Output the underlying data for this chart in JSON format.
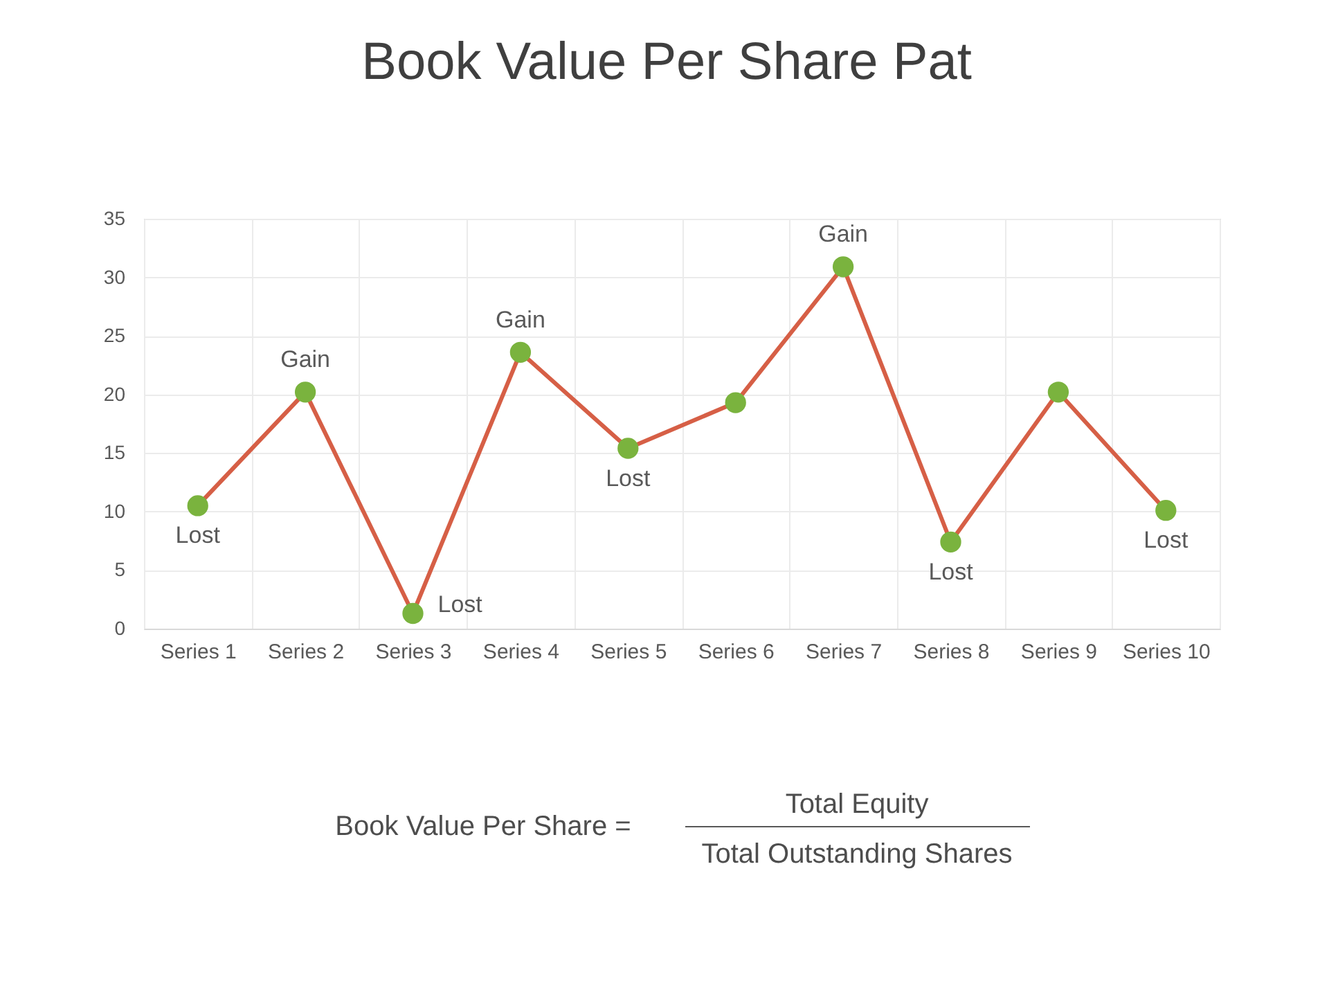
{
  "chart_data": {
    "type": "line",
    "title": "Book Value Per Share Pat",
    "categories": [
      "Series 1",
      "Series 2",
      "Series 3",
      "Series 4",
      "Series 5",
      "Series 6",
      "Series 7",
      "Series 8",
      "Series 9",
      "Series 10"
    ],
    "series": [
      {
        "color": "#d65f46",
        "colors": [
          "#7ab33e",
          "#7ab33e",
          "#7ab33e",
          "#7ab33e",
          "#7ab33e",
          "#7ab33e",
          "#7ab33e",
          "#7ab33e",
          "#7ab33e",
          "#7ab33e"
        ],
        "values": [
          10.5,
          20.2,
          1.3,
          23.6,
          15.4,
          19.3,
          30.9,
          7.4,
          20.2,
          10.1
        ]
      }
    ],
    "ylim": [
      0,
      35
    ],
    "yticks": [
      0,
      5,
      10,
      15,
      20,
      25,
      30,
      35
    ],
    "grid": true,
    "marker": "circle",
    "line_style": "solid",
    "annotations": [
      {
        "text": "Lost",
        "x": "Series 1",
        "y": 10.5
      },
      {
        "text": "Gain",
        "x": "Series 2",
        "y": 20.2
      },
      {
        "text": "Lost",
        "x": "Series 3",
        "y": 1.3
      },
      {
        "text": "Gain",
        "x": "Series 4",
        "y": 23.6
      },
      {
        "text": "Lost",
        "x": "Series 5",
        "y": 15.4
      },
      {
        "text": "Gain",
        "x": "Series 7",
        "y": 30.9
      },
      {
        "text": "Lost",
        "x": "Series 8",
        "y": 7.4
      },
      {
        "text": "Lost",
        "x": "Series 10",
        "y": 10.1
      },
      "Book Value Per Share =",
      "Total Equity",
      "Total Outstanding Shares"
    ]
  }
}
